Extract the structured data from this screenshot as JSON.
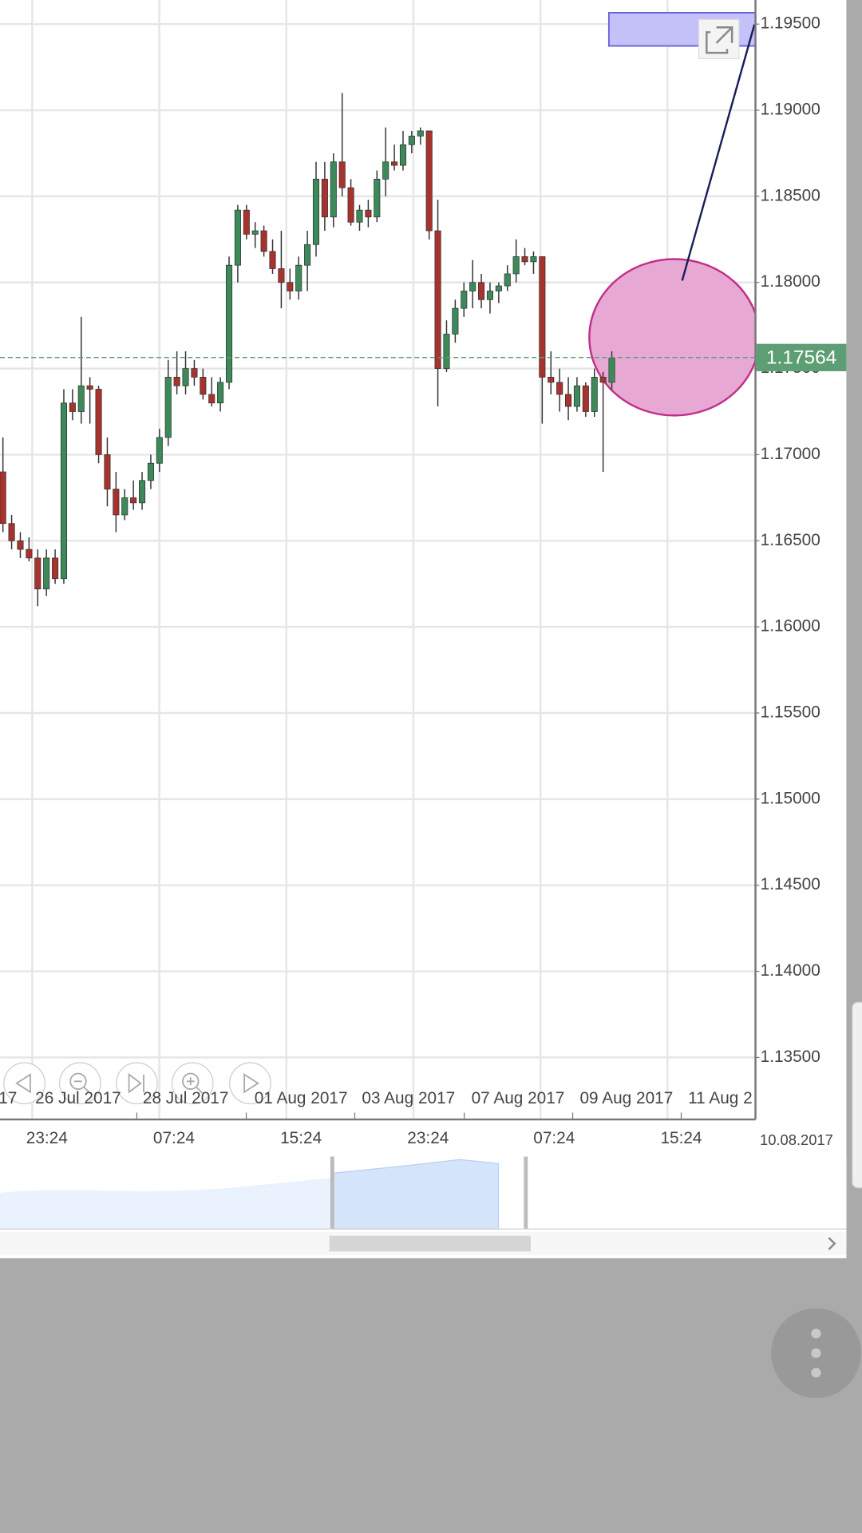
{
  "chart_data": {
    "type": "candlestick",
    "open": [
      1.169,
      1.166,
      1.165,
      1.1645,
      1.164,
      1.1622,
      1.164,
      1.1628,
      1.173,
      1.1725,
      1.174,
      1.1738,
      1.17,
      1.168,
      1.1665,
      1.1675,
      1.1672,
      1.1685,
      1.1695,
      1.171,
      1.1745,
      1.174,
      1.175,
      1.1745,
      1.1735,
      1.173,
      1.1742,
      1.181,
      1.1842,
      1.1828,
      1.183,
      1.1818,
      1.1808,
      1.18,
      1.1795,
      1.181,
      1.1822,
      1.186,
      1.1838,
      1.187,
      1.1855,
      1.1835,
      1.1842,
      1.1838,
      1.186,
      1.187,
      1.1868,
      1.188,
      1.1885,
      1.1888,
      1.183,
      1.175,
      1.177,
      1.1785,
      1.1795,
      1.18,
      1.179,
      1.1795,
      1.1798,
      1.1805,
      1.1815,
      1.1812,
      1.1815,
      1.1745,
      1.1742,
      1.1735,
      1.1728,
      1.174,
      1.1725,
      1.1745,
      1.1742
    ],
    "high": [
      1.171,
      1.1665,
      1.1655,
      1.1652,
      1.1645,
      1.1645,
      1.1645,
      1.1738,
      1.1738,
      1.178,
      1.1745,
      1.174,
      1.171,
      1.169,
      1.168,
      1.1685,
      1.169,
      1.17,
      1.1715,
      1.1755,
      1.176,
      1.176,
      1.1755,
      1.175,
      1.1745,
      1.1745,
      1.1815,
      1.1845,
      1.1845,
      1.1835,
      1.1833,
      1.1825,
      1.183,
      1.1808,
      1.1815,
      1.183,
      1.187,
      1.187,
      1.1875,
      1.191,
      1.186,
      1.1845,
      1.1848,
      1.1865,
      1.189,
      1.188,
      1.1888,
      1.1888,
      1.189,
      1.1888,
      1.1848,
      1.1778,
      1.179,
      1.18,
      1.1813,
      1.1805,
      1.18,
      1.18,
      1.181,
      1.1825,
      1.182,
      1.1818,
      1.1815,
      1.176,
      1.175,
      1.1745,
      1.1745,
      1.1742,
      1.175,
      1.1748,
      1.176
    ],
    "low": [
      1.1655,
      1.1645,
      1.164,
      1.1638,
      1.1612,
      1.1618,
      1.1625,
      1.1625,
      1.172,
      1.1718,
      1.1718,
      1.1695,
      1.167,
      1.1655,
      1.1662,
      1.1668,
      1.1668,
      1.168,
      1.169,
      1.1705,
      1.1735,
      1.1735,
      1.174,
      1.1732,
      1.1728,
      1.1725,
      1.1738,
      1.18,
      1.1825,
      1.182,
      1.1815,
      1.1805,
      1.1785,
      1.179,
      1.179,
      1.1795,
      1.1815,
      1.183,
      1.1832,
      1.185,
      1.1833,
      1.183,
      1.1832,
      1.1835,
      1.185,
      1.1865,
      1.1865,
      1.1875,
      1.188,
      1.1825,
      1.1728,
      1.1748,
      1.1765,
      1.178,
      1.1785,
      1.1785,
      1.1782,
      1.1788,
      1.1795,
      1.18,
      1.181,
      1.1805,
      1.1718,
      1.1735,
      1.1725,
      1.172,
      1.1725,
      1.1722,
      1.1722,
      1.169,
      1.1738
    ],
    "close": [
      1.166,
      1.165,
      1.1645,
      1.164,
      1.1622,
      1.164,
      1.1628,
      1.173,
      1.1725,
      1.174,
      1.1738,
      1.17,
      1.168,
      1.1665,
      1.1675,
      1.1672,
      1.1685,
      1.1695,
      1.171,
      1.1745,
      1.174,
      1.175,
      1.1745,
      1.1735,
      1.173,
      1.1742,
      1.181,
      1.1842,
      1.1828,
      1.183,
      1.1818,
      1.1808,
      1.18,
      1.1795,
      1.181,
      1.1822,
      1.186,
      1.1838,
      1.187,
      1.1855,
      1.1835,
      1.1842,
      1.1838,
      1.186,
      1.187,
      1.1868,
      1.188,
      1.1885,
      1.1888,
      1.183,
      1.175,
      1.177,
      1.1785,
      1.1795,
      1.18,
      1.179,
      1.1795,
      1.1798,
      1.1805,
      1.1815,
      1.1812,
      1.1815,
      1.1745,
      1.1742,
      1.1735,
      1.1728,
      1.174,
      1.1725,
      1.1745,
      1.1742,
      1.1756
    ],
    "up_color": "#3c8a5a",
    "down_color": "#a8322d",
    "ylim": [
      1.1314,
      1.1964
    ],
    "yticks": [
      {
        "value": 1.135,
        "label": "1.13500"
      },
      {
        "value": 1.14,
        "label": "1.14000"
      },
      {
        "value": 1.145,
        "label": "1.14500"
      },
      {
        "value": 1.15,
        "label": "1.15000"
      },
      {
        "value": 1.155,
        "label": "1.15500"
      },
      {
        "value": 1.16,
        "label": "1.16000"
      },
      {
        "value": 1.165,
        "label": "1.16500"
      },
      {
        "value": 1.17,
        "label": "1.17000"
      },
      {
        "value": 1.175,
        "label": "1.17500"
      },
      {
        "value": 1.18,
        "label": "1.18000"
      },
      {
        "value": 1.185,
        "label": "1.18500"
      },
      {
        "value": 1.19,
        "label": "1.19000"
      },
      {
        "value": 1.195,
        "label": "1.19500"
      }
    ],
    "grid": true,
    "last_price": 1.17564,
    "last_price_color": "#5e9e74"
  },
  "x_axis": {
    "dates": [
      "17",
      "26 Jul 2017",
      "28 Jul 2017",
      "01 Aug 2017",
      "03 Aug 2017",
      "07 Aug 2017",
      "09 Aug 2017",
      "11 Aug 2"
    ],
    "times": [
      "23:24",
      "07:24",
      "15:24",
      "23:24",
      "07:24",
      "15:24"
    ],
    "date_stamp": "10.08.2017"
  }
}
